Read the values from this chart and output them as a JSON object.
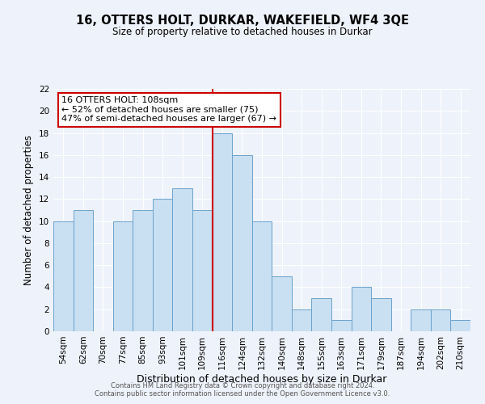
{
  "title": "16, OTTERS HOLT, DURKAR, WAKEFIELD, WF4 3QE",
  "subtitle": "Size of property relative to detached houses in Durkar",
  "xlabel": "Distribution of detached houses by size in Durkar",
  "ylabel": "Number of detached properties",
  "categories": [
    "54sqm",
    "62sqm",
    "70sqm",
    "77sqm",
    "85sqm",
    "93sqm",
    "101sqm",
    "109sqm",
    "116sqm",
    "124sqm",
    "132sqm",
    "140sqm",
    "148sqm",
    "155sqm",
    "163sqm",
    "171sqm",
    "179sqm",
    "187sqm",
    "194sqm",
    "202sqm",
    "210sqm"
  ],
  "values": [
    10,
    11,
    0,
    10,
    11,
    12,
    13,
    11,
    18,
    16,
    10,
    5,
    2,
    3,
    1,
    4,
    3,
    0,
    2,
    2,
    1
  ],
  "bar_color": "#c9dff2",
  "bar_edge_color": "#6ba3cc",
  "vline_x_index": 7,
  "vline_color": "#cc0000",
  "annotation_line1": "16 OTTERS HOLT: 108sqm",
  "annotation_line2": "← 52% of detached houses are smaller (75)",
  "annotation_line3": "47% of semi-detached houses are larger (67) →",
  "annotation_box_color": "#ffffff",
  "annotation_box_edge_color": "#cc0000",
  "ylim": [
    0,
    22
  ],
  "yticks": [
    0,
    2,
    4,
    6,
    8,
    10,
    12,
    14,
    16,
    18,
    20,
    22
  ],
  "footer_text": "Contains HM Land Registry data © Crown copyright and database right 2024.\nContains public sector information licensed under the Open Government Licence v3.0.",
  "background_color": "#eef2fa",
  "grid_color": "#ffffff",
  "title_fontsize": 10.5,
  "subtitle_fontsize": 8.5,
  "xlabel_fontsize": 9,
  "ylabel_fontsize": 8.5,
  "tick_fontsize": 7.5,
  "annotation_fontsize": 8,
  "footer_fontsize": 6
}
